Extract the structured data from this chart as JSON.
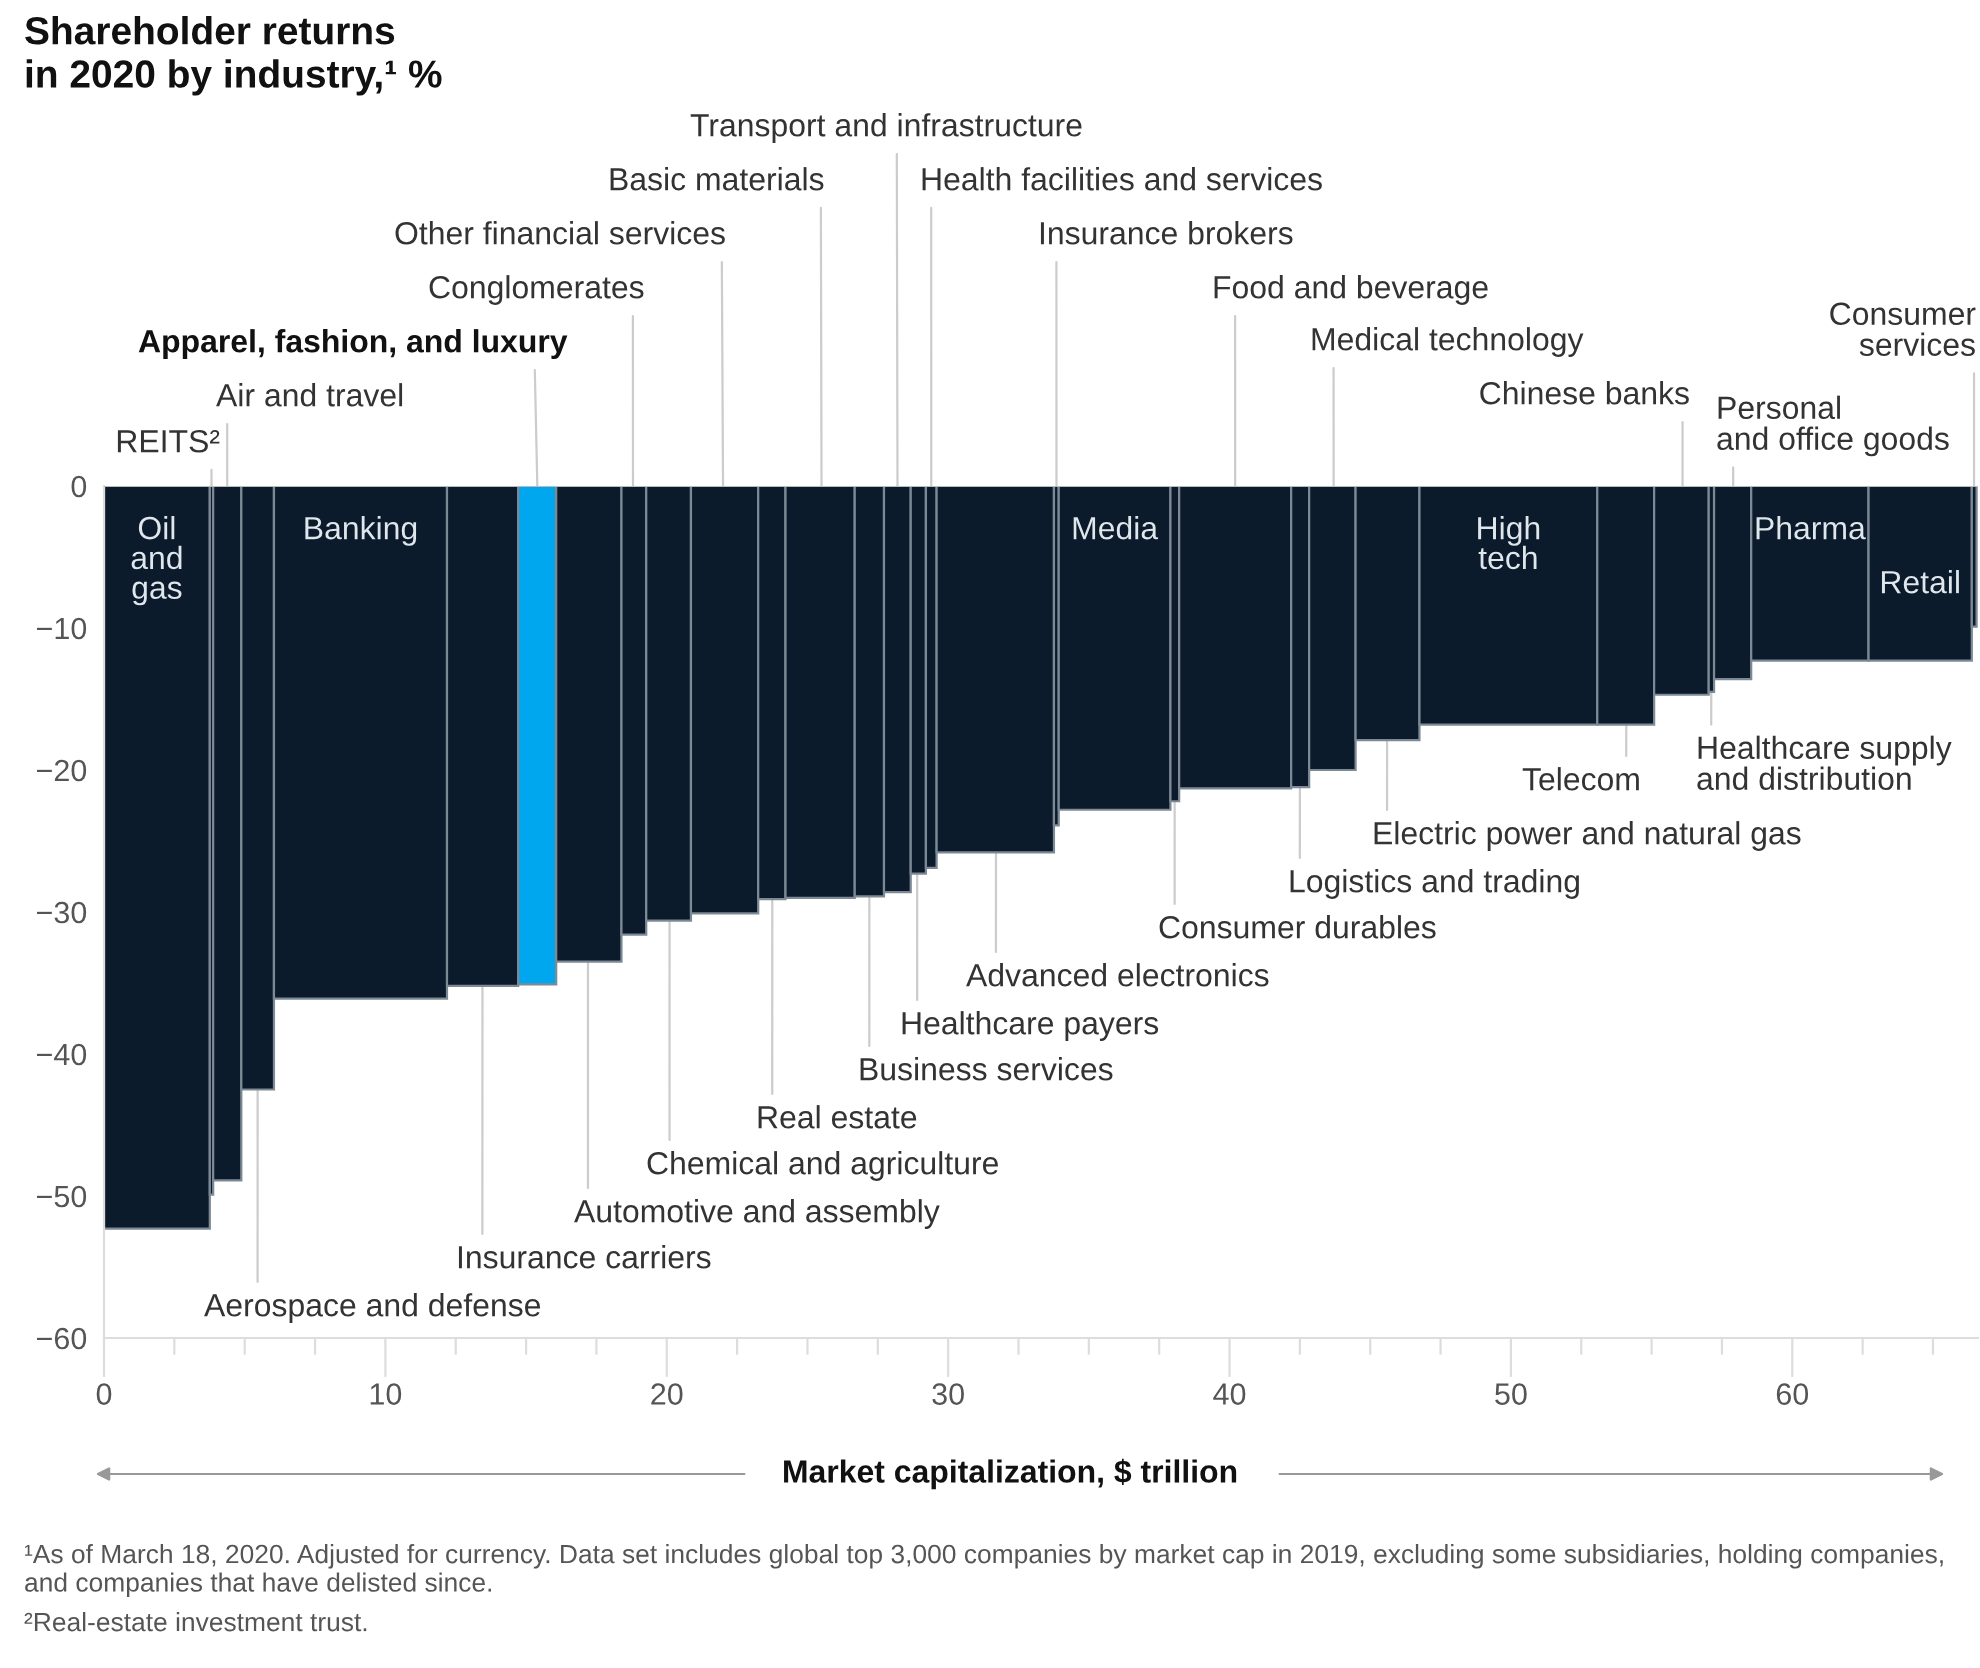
{
  "chart_data": {
    "type": "histogram",
    "title": "Shareholder returns\nin 2020 by industry,¹ %",
    "xlabel": "Market capitalization, $ trillion",
    "bins": [
      0,
      3.76,
      3.88,
      4.88,
      6.04,
      12.19,
      14.72,
      16.07,
      18.39,
      19.27,
      20.86,
      23.25,
      24.22,
      26.68,
      27.72,
      28.67,
      29.21,
      29.59,
      33.76,
      33.93,
      37.9,
      38.21,
      42.19,
      42.83,
      44.48,
      46.75,
      53.07,
      55.09,
      57.03,
      57.22,
      58.54,
      62.71,
      66.38,
      66.55
    ],
    "values": [
      -52.3,
      -49.9,
      -48.9,
      -42.5,
      -36.1,
      -35.2,
      -35.1,
      -33.5,
      -31.6,
      -30.6,
      -30.1,
      -29.1,
      -29.0,
      -28.9,
      -28.6,
      -27.3,
      -26.9,
      -25.8,
      -23.9,
      -22.8,
      -22.2,
      -21.3,
      -21.2,
      -20.0,
      -17.9,
      -16.8,
      -16.8,
      -14.7,
      -14.5,
      -13.6,
      -12.3,
      -12.3,
      -9.9
    ],
    "colors": [
      "#0b1b2b",
      "#0b1b2b",
      "#0b1b2b",
      "#0b1b2b",
      "#0b1b2b",
      "#0b1b2b",
      "#00a6ee",
      "#0b1b2b",
      "#0b1b2b",
      "#0b1b2b",
      "#0b1b2b",
      "#0b1b2b",
      "#0b1b2b",
      "#0b1b2b",
      "#0b1b2b",
      "#0b1b2b",
      "#0b1b2b",
      "#0b1b2b",
      "#0b1b2b",
      "#0b1b2b",
      "#0b1b2b",
      "#0b1b2b",
      "#0b1b2b",
      "#0b1b2b",
      "#0b1b2b",
      "#0b1b2b",
      "#0b1b2b",
      "#0b1b2b",
      "#0b1b2b",
      "#0b1b2b",
      "#0b1b2b",
      "#0b1b2b",
      "#0b1b2b"
    ],
    "xlim": [
      0,
      66.6
    ],
    "ylim": [
      -60,
      0
    ],
    "xticks": [
      0,
      {
        "value": 2.5,
        "label": null
      },
      {
        "value": 5,
        "label": null
      },
      {
        "value": 7.5,
        "label": null
      },
      10,
      {
        "value": 12.5,
        "label": null
      },
      {
        "value": 15,
        "label": null
      },
      {
        "value": 17.5,
        "label": null
      },
      20,
      {
        "value": 22.5,
        "label": null
      },
      {
        "value": 25,
        "label": null
      },
      {
        "value": 27.5,
        "label": null
      },
      30,
      {
        "value": 32.5,
        "label": null
      },
      {
        "value": 35,
        "label": null
      },
      {
        "value": 37.5,
        "label": null
      },
      40,
      {
        "value": 42.5,
        "label": null
      },
      {
        "value": 45,
        "label": null
      },
      {
        "value": 47.5,
        "label": null
      },
      50,
      {
        "value": 52.5,
        "label": null
      },
      {
        "value": 55,
        "label": null
      },
      {
        "value": 57.5,
        "label": null
      },
      60,
      {
        "value": 62.5,
        "label": null
      },
      {
        "value": 65,
        "label": null
      }
    ],
    "yticks": [
      0,
      {
        "value": -10,
        "label": "−10"
      },
      {
        "value": -20,
        "label": "−20"
      },
      {
        "value": -30,
        "label": "−30"
      },
      {
        "value": -40,
        "label": "−40"
      },
      {
        "value": -50,
        "label": "−50"
      },
      {
        "value": -60,
        "label": "−60"
      }
    ],
    "annotations": [
      "Oil\nand\ngas",
      {
        "text": "REITS²",
        "x": 3.82,
        "y": 0
      },
      {
        "text": "Air and travel",
        "x": 4.38,
        "y": 0
      },
      {
        "text": "Aerospace and defense",
        "x": 5.46,
        "y": -42.5
      },
      "Banking",
      {
        "text": "Insurance carriers",
        "x": 13.45,
        "y": -35.2
      },
      {
        "text": "Apparel, fashion, and luxury",
        "x": 15.4,
        "y": 0
      },
      {
        "text": "Automotive and assembly",
        "x": 17.2,
        "y": -33.5
      },
      {
        "text": "Conglomerates",
        "x": 18.8,
        "y": 0
      },
      {
        "text": "Chemical and agriculture",
        "x": 20.1,
        "y": -30.6
      },
      {
        "text": "Other financial services",
        "x": 22.0,
        "y": 0
      },
      {
        "text": "Real estate",
        "x": 23.75,
        "y": -29.1
      },
      {
        "text": "Basic materials",
        "x": 25.5,
        "y": 0
      },
      {
        "text": "Business services",
        "x": 27.2,
        "y": -28.9
      },
      {
        "text": "Transport and infrastructure",
        "x": 28.2,
        "y": 0
      },
      {
        "text": "Healthcare payers",
        "x": 28.9,
        "y": -27.3
      },
      {
        "text": "Health facilities and services",
        "x": 29.4,
        "y": 0
      },
      {
        "text": "Advanced electronics",
        "x": 31.7,
        "y": -25.8
      },
      {
        "text": "Insurance brokers",
        "x": 33.85,
        "y": 0
      },
      "Media",
      {
        "text": "Consumer durables",
        "x": 38.05,
        "y": -22.2
      },
      {
        "text": "Food and beverage",
        "x": 40.2,
        "y": 0
      },
      {
        "text": "Logistics and trading",
        "x": 42.5,
        "y": -21.2
      },
      {
        "text": "Medical technology",
        "x": 43.7,
        "y": 0
      },
      {
        "text": "Electric power and natural gas",
        "x": 45.6,
        "y": -17.9
      },
      "High\ntech",
      {
        "text": "Telecom",
        "x": 54.1,
        "y": -16.8
      },
      {
        "text": "Chinese banks",
        "x": 56.1,
        "y": 0
      },
      {
        "text": "Healthcare supply\nand distribution",
        "x": 57.12,
        "y": -14.5
      },
      {
        "text": "Personal\nand office goods",
        "x": 57.9,
        "y": 0
      },
      "Pharma",
      "Retail",
      {
        "text": "Consumer\nservices",
        "x": 66.46,
        "y": 0
      },
      "¹As of March 18, 2020. Adjusted for currency. Data set includes global top 3,000 companies by market cap in 2019, excluding some subsidiaries, holding companies, and companies that have delisted since.",
      "²Real-estate investment trust."
    ]
  }
}
